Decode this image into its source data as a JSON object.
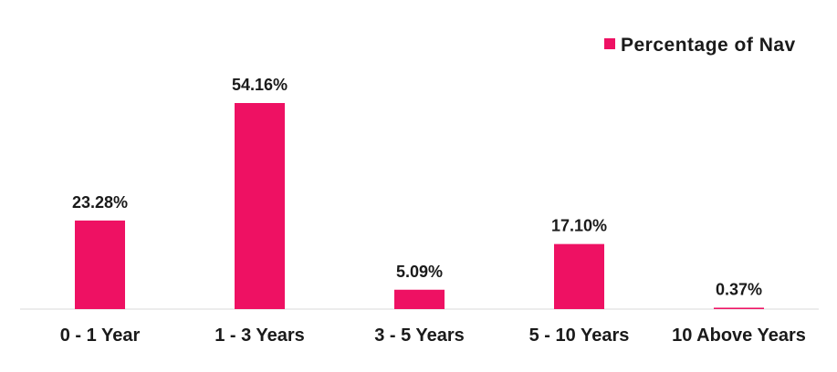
{
  "chart_data": {
    "type": "bar",
    "categories": [
      "0 - 1 Year",
      "1 - 3 Years",
      "3 - 5 Years",
      "5 - 10 Years",
      "10 Above Years"
    ],
    "series": [
      {
        "name": "Percentage of Nav",
        "values": [
          23.28,
          54.16,
          5.09,
          17.1,
          0.37
        ],
        "labels": [
          "23.28%",
          "54.16%",
          "5.09%",
          "17.10%",
          "0.37%"
        ],
        "color": "#ee1163"
      }
    ],
    "title": "",
    "xlabel": "",
    "ylabel": "",
    "ylim": [
      0,
      60
    ],
    "grid": false,
    "legend_position": "top-right"
  }
}
